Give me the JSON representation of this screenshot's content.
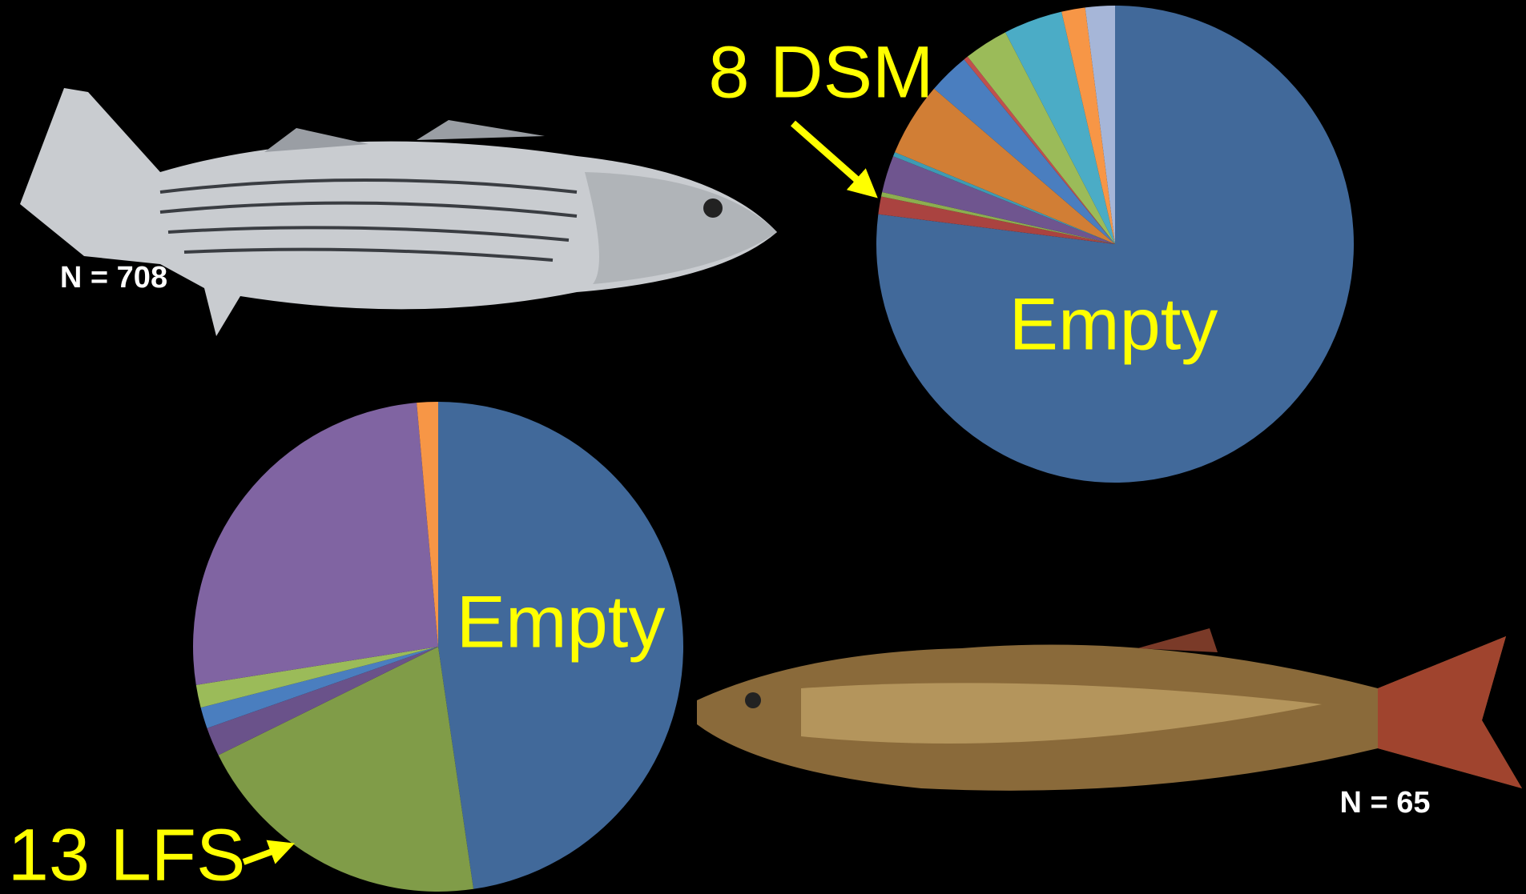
{
  "chart_data": [
    {
      "type": "pie",
      "categories": [
        "Empty",
        null,
        null,
        null,
        null,
        null,
        null,
        null,
        null,
        null,
        null,
        null
      ],
      "values": [
        77,
        1.2,
        0.3,
        2.5,
        0.3,
        5,
        2.8,
        0.3,
        3,
        4,
        1.6,
        2
      ],
      "colors": [
        "#41699a",
        "#aa4340",
        "#8cae4f",
        "#6f558f",
        "#3e9bb3",
        "#d17e35",
        "#4a7ebf",
        "#c0504d",
        "#9bbb59",
        "#4bacc6",
        "#f79646",
        "#a6b6d8"
      ],
      "annotations": [
        "8 DSM",
        "N = 708"
      ]
    },
    {
      "type": "pie",
      "categories": [
        "Empty",
        null,
        null,
        null,
        null,
        null,
        null
      ],
      "values": [
        47.7,
        20,
        1.9,
        1.4,
        1.5,
        26.1,
        1.4
      ],
      "colors": [
        "#41699a",
        "#809c48",
        "#6a528a",
        "#4a7ebf",
        "#9bbb59",
        "#8064a2",
        "#f79646"
      ],
      "annotations": [
        "13 LFS",
        "N = 65"
      ]
    }
  ]
}
